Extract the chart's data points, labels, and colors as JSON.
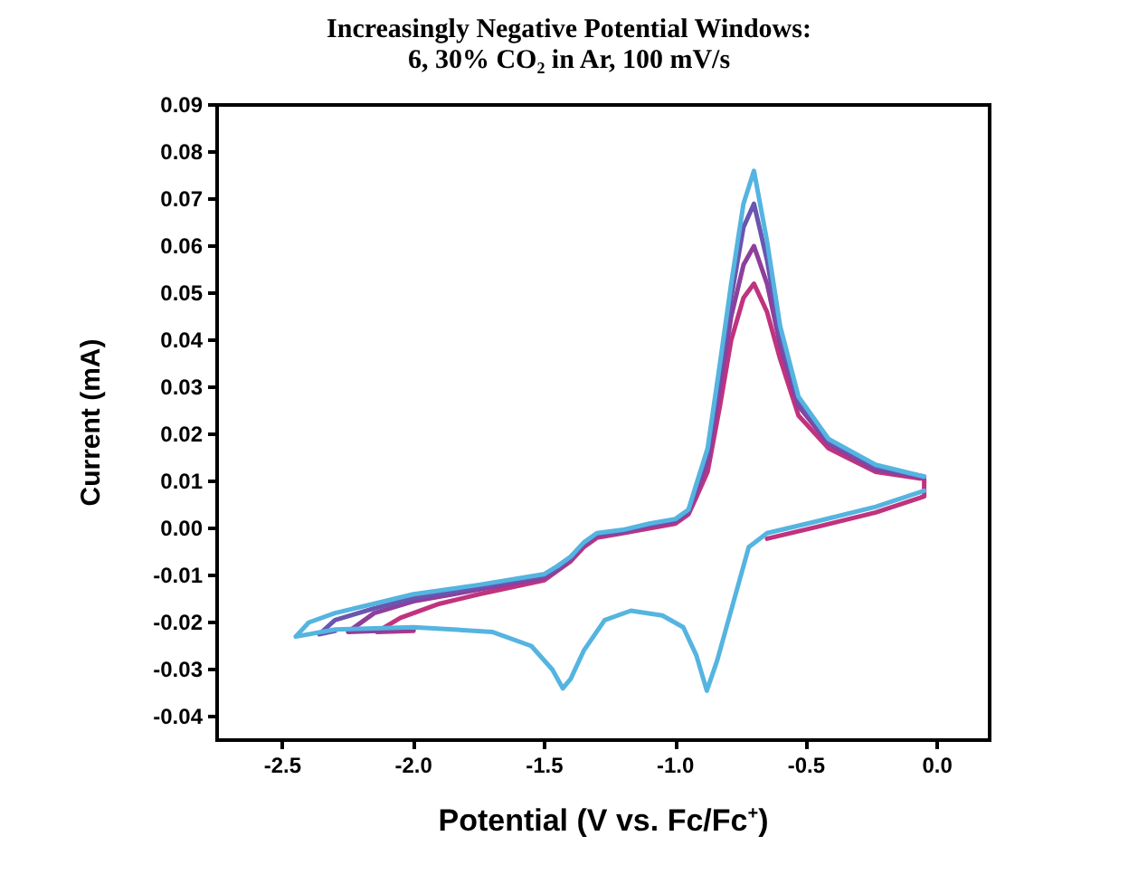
{
  "chart_data": {
    "type": "line",
    "title": "Increasingly Negative Potential Windows:",
    "subtitle": "6, 30% CO₂ in Ar, 100 mV/s",
    "xlabel": "Potential (V vs. Fc/Fc$^{+}$)",
    "ylabel": "Current (mA)",
    "xlim": [
      -2.75,
      0.2
    ],
    "ylim": [
      -0.045,
      0.09
    ],
    "xticks": [
      {
        "value": -2.5,
        "label": "-2.5"
      },
      {
        "value": -2.0,
        "label": "-2.0"
      },
      {
        "value": -1.5,
        "label": "-1.5"
      },
      {
        "value": -1.0,
        "label": "-1.0"
      },
      {
        "value": -0.5,
        "label": "-0.5"
      },
      {
        "value": 0,
        "label": "0.0"
      }
    ],
    "yticks": [
      {
        "value": -0.04,
        "label": "-0.04"
      },
      {
        "value": -0.03,
        "label": "-0.03"
      },
      {
        "value": -0.02,
        "label": "-0.02"
      },
      {
        "value": -0.01,
        "label": "-0.01"
      },
      {
        "value": 0,
        "label": "0.00"
      },
      {
        "value": 0.01,
        "label": "0.01"
      },
      {
        "value": 0.02,
        "label": "0.02"
      },
      {
        "value": 0.03,
        "label": "0.03"
      },
      {
        "value": 0.04,
        "label": "0.04"
      },
      {
        "value": 0.05,
        "label": "0.05"
      },
      {
        "value": 0.06,
        "label": "0.06"
      },
      {
        "value": 0.07,
        "label": "0.07"
      },
      {
        "value": 0.08,
        "label": "0.08"
      },
      {
        "value": 0.09,
        "label": "0.09"
      }
    ],
    "grid": false,
    "series": [
      {
        "color": "#c0337e",
        "x": [
          -2.0,
          -2.14,
          -2.05,
          -1.9,
          -1.75,
          -1.5,
          -1.45,
          -1.4,
          -1.35,
          -1.3,
          -1.2,
          -1.1,
          -1.0,
          -0.95,
          -0.925,
          -0.877,
          -0.83,
          -0.787,
          -0.74,
          -0.7,
          -0.65,
          -0.6,
          -0.53,
          -0.415,
          -0.235,
          -0.05,
          -0.05,
          -0.235,
          -0.46,
          -0.65
        ],
        "values": [
          -0.0218,
          -0.022,
          -0.019,
          -0.016,
          -0.014,
          -0.011,
          -0.009,
          -0.007,
          -0.004,
          -0.002,
          -0.001,
          0.0,
          0.001,
          0.003,
          0.006,
          0.012,
          0.026,
          0.04,
          0.049,
          0.052,
          0.046,
          0.036,
          0.024,
          0.017,
          0.012,
          0.0105,
          0.0068,
          0.0034,
          0.0003,
          -0.0022
        ]
      },
      {
        "color": "#8e3f9c",
        "x": [
          -2.0,
          -2.25,
          -2.15,
          -2.0,
          -1.75,
          -1.5,
          -1.45,
          -1.4,
          -1.35,
          -1.3,
          -1.2,
          -1.1,
          -1.0,
          -0.95,
          -0.925,
          -0.877,
          -0.83,
          -0.787,
          -0.74,
          -0.7,
          -0.65,
          -0.6,
          -0.53,
          -0.415,
          -0.235,
          -0.05
        ],
        "values": [
          -0.0215,
          -0.022,
          -0.018,
          -0.0155,
          -0.013,
          -0.0105,
          -0.0088,
          -0.0065,
          -0.0035,
          -0.0015,
          -0.0008,
          0.0005,
          0.0015,
          0.0035,
          0.007,
          0.014,
          0.03,
          0.045,
          0.056,
          0.06,
          0.052,
          0.039,
          0.026,
          0.018,
          0.0125,
          0.0108
        ]
      },
      {
        "color": "#6a55b0",
        "x": [
          -2.3,
          -2.36,
          -2.3,
          -2.15,
          -2.0,
          -1.75,
          -1.5,
          -1.45,
          -1.4,
          -1.35,
          -1.3,
          -1.2,
          -1.1,
          -1.0,
          -0.95,
          -0.925,
          -0.877,
          -0.83,
          -0.787,
          -0.74,
          -0.7,
          -0.65,
          -0.6,
          -0.53,
          -0.415,
          -0.235,
          -0.05
        ],
        "values": [
          -0.0218,
          -0.0225,
          -0.0195,
          -0.017,
          -0.0148,
          -0.0125,
          -0.01,
          -0.0084,
          -0.0062,
          -0.0032,
          -0.0012,
          -0.0005,
          0.0008,
          0.0018,
          0.0038,
          0.008,
          0.016,
          0.033,
          0.049,
          0.064,
          0.069,
          0.057,
          0.041,
          0.027,
          0.0185,
          0.013,
          0.011
        ]
      },
      {
        "color": "#55b4e0",
        "x": [
          -0.05,
          -0.235,
          -0.46,
          -0.65,
          -0.72,
          -0.76,
          -0.79,
          -0.84,
          -0.88,
          -0.92,
          -0.97,
          -1.05,
          -1.17,
          -1.27,
          -1.35,
          -1.4,
          -1.43,
          -1.47,
          -1.55,
          -1.7,
          -2.0,
          -2.3,
          -2.45,
          -2.4,
          -2.3,
          -2.15,
          -2.0,
          -1.75,
          -1.5,
          -1.45,
          -1.4,
          -1.35,
          -1.3,
          -1.2,
          -1.1,
          -1.0,
          -0.95,
          -0.925,
          -0.877,
          -0.83,
          -0.787,
          -0.74,
          -0.7,
          -0.65,
          -0.6,
          -0.53,
          -0.415,
          -0.235,
          -0.05
        ],
        "values": [
          0.008,
          0.0046,
          0.0015,
          -0.001,
          -0.004,
          -0.012,
          -0.018,
          -0.028,
          -0.0345,
          -0.027,
          -0.021,
          -0.0185,
          -0.0175,
          -0.0195,
          -0.026,
          -0.032,
          -0.034,
          -0.03,
          -0.025,
          -0.022,
          -0.021,
          -0.0215,
          -0.023,
          -0.02,
          -0.018,
          -0.016,
          -0.014,
          -0.012,
          -0.0097,
          -0.008,
          -0.006,
          -0.003,
          -0.001,
          -0.0003,
          0.001,
          0.002,
          0.004,
          0.0085,
          0.017,
          0.035,
          0.052,
          0.069,
          0.076,
          0.061,
          0.043,
          0.028,
          0.019,
          0.0135,
          0.011
        ]
      }
    ]
  }
}
